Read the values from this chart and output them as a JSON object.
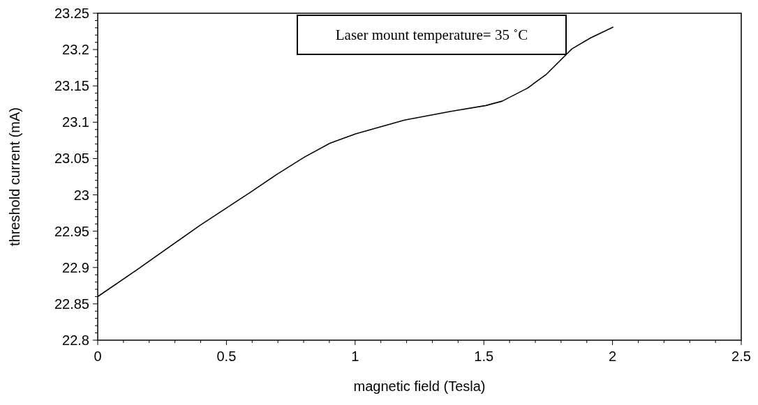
{
  "chart_data": {
    "type": "line",
    "xlabel": "magnetic field (Tesla)",
    "ylabel": "threshold current (mA)",
    "annotations": [
      "Laser mount temperature= 35 ˚C"
    ],
    "x": [
      0,
      0.153,
      0.397,
      0.595,
      0.695,
      0.803,
      0.902,
      1.002,
      1.192,
      1.372,
      1.508,
      1.571,
      1.67,
      1.743,
      1.842,
      1.914,
      2.003
    ],
    "series": [
      {
        "color": "#000000",
        "values": [
          22.86,
          22.897,
          22.958,
          23.004,
          23.028,
          23.052,
          23.071,
          23.084,
          23.103,
          23.115,
          23.123,
          23.129,
          23.147,
          23.166,
          23.201,
          23.216,
          23.231
        ]
      }
    ],
    "xlim": [
      0,
      2.5
    ],
    "ylim": [
      22.8,
      23.25
    ],
    "xticks": [
      0,
      0.5,
      1,
      1.5,
      2,
      2.5
    ],
    "yticks": [
      22.8,
      22.85,
      22.9,
      22.95,
      23,
      23.05,
      23.1,
      23.15,
      23.2,
      23.25
    ],
    "grid": false,
    "marker": "none",
    "line_style": "solid"
  }
}
